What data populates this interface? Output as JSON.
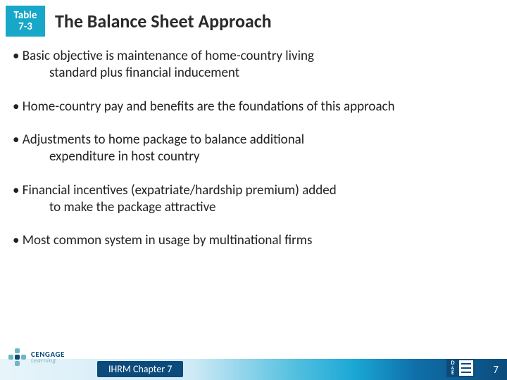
{
  "badge": {
    "line1": "Table",
    "line2": "7-3",
    "bg": "#17a7c9"
  },
  "title": "The Balance Sheet Approach",
  "bullets": [
    {
      "line1": "• Basic objective is maintenance of home-country living",
      "indent": "standard plus financial inducement"
    },
    {
      "line1": "• Home-country pay and benefits are the foundations of this approach",
      "indent": ""
    },
    {
      "line1": "• Adjustments to home package to balance additional",
      "indent": "expenditure in host country"
    },
    {
      "line1": "• Financial incentives (expatriate/hardship premium) added",
      "indent": "to make the package attractive"
    },
    {
      "line1": "• Most common system in usage by multinational firms",
      "indent": ""
    }
  ],
  "footer": {
    "logo_top": "CENGAGE",
    "logo_bottom": "Learning",
    "chapter": "IHRM Chapter 7",
    "page": "7"
  },
  "colors": {
    "title_text": "#2a2a2a",
    "body_text": "#222222",
    "footer_dark": "#0b4b7b",
    "footer_mid": "#1aa7d5",
    "footer_light": "#cfeaf6"
  },
  "fonts": {
    "title_size_pt": 20,
    "body_size_pt": 14
  }
}
